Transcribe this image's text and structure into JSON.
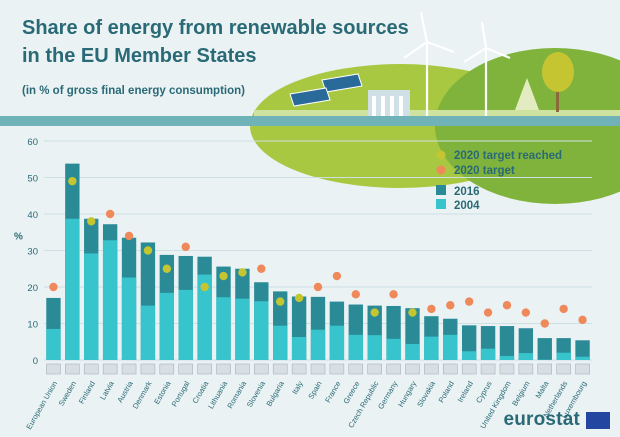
{
  "header": {
    "title_line1": "Share of energy from renewable sources",
    "title_line2": "in the EU Member States",
    "subtitle": "(in % of gross final energy consumption)"
  },
  "footer": {
    "logo_text": "eurostat"
  },
  "colors": {
    "bar_2016": "#2a8b96",
    "bar_2004": "#38c4cc",
    "target_reached": "#c4c531",
    "target": "#f0895a",
    "axis_text": "#2a6a76",
    "grid": "#cfe0e3"
  },
  "chart_data": {
    "type": "bar",
    "title": "Share of energy from renewable sources in the EU Member States",
    "ylabel": "%",
    "ylim": [
      0,
      60
    ],
    "yticks": [
      0,
      10,
      20,
      30,
      40,
      50,
      60
    ],
    "grid": true,
    "legend_placement": "top-right",
    "legend": {
      "target_reached": "2020 target reached",
      "target": "2020 target",
      "year_2016": "2016",
      "year_2004": "2004"
    },
    "categories": [
      "European Union",
      "Sweden",
      "Finland",
      "Latvia",
      "Austria",
      "Denmark",
      "Estonia",
      "Portugal",
      "Croatia",
      "Lithuania",
      "Romania",
      "Slovenia",
      "Bulgaria",
      "Italy",
      "Spain",
      "France",
      "Greece",
      "Czech Republic",
      "Germany",
      "Hungary",
      "Slovakia",
      "Poland",
      "Ireland",
      "Cyprus",
      "United Kingdom",
      "Belgium",
      "Malta",
      "Netherlands",
      "Luxembourg"
    ],
    "series": [
      {
        "name": "2016",
        "values": [
          17.0,
          53.8,
          38.7,
          37.2,
          33.5,
          32.2,
          28.8,
          28.5,
          28.3,
          25.6,
          25.0,
          21.3,
          18.8,
          17.4,
          17.3,
          16.0,
          15.2,
          14.9,
          14.8,
          14.2,
          12.0,
          11.3,
          9.5,
          9.3,
          9.3,
          8.7,
          6.0,
          6.0,
          5.4
        ]
      },
      {
        "name": "2004",
        "values": [
          8.5,
          38.7,
          29.2,
          32.8,
          22.6,
          14.9,
          18.4,
          19.2,
          23.4,
          17.2,
          16.8,
          16.1,
          9.4,
          6.3,
          8.3,
          9.4,
          6.9,
          6.8,
          5.8,
          4.4,
          6.4,
          6.9,
          2.4,
          3.1,
          1.1,
          1.9,
          0.1,
          2.0,
          0.9
        ]
      }
    ],
    "target_2020": [
      20,
      49,
      38,
      40,
      34,
      30,
      25,
      31,
      20,
      23,
      24,
      25,
      16,
      17,
      20,
      23,
      18,
      13,
      18,
      13,
      14,
      15,
      16,
      13,
      15,
      13,
      10,
      14,
      11
    ],
    "target_reached": [
      false,
      true,
      true,
      false,
      false,
      true,
      true,
      false,
      true,
      true,
      true,
      false,
      true,
      true,
      false,
      false,
      false,
      true,
      false,
      true,
      false,
      false,
      false,
      false,
      false,
      false,
      false,
      false,
      false
    ]
  }
}
